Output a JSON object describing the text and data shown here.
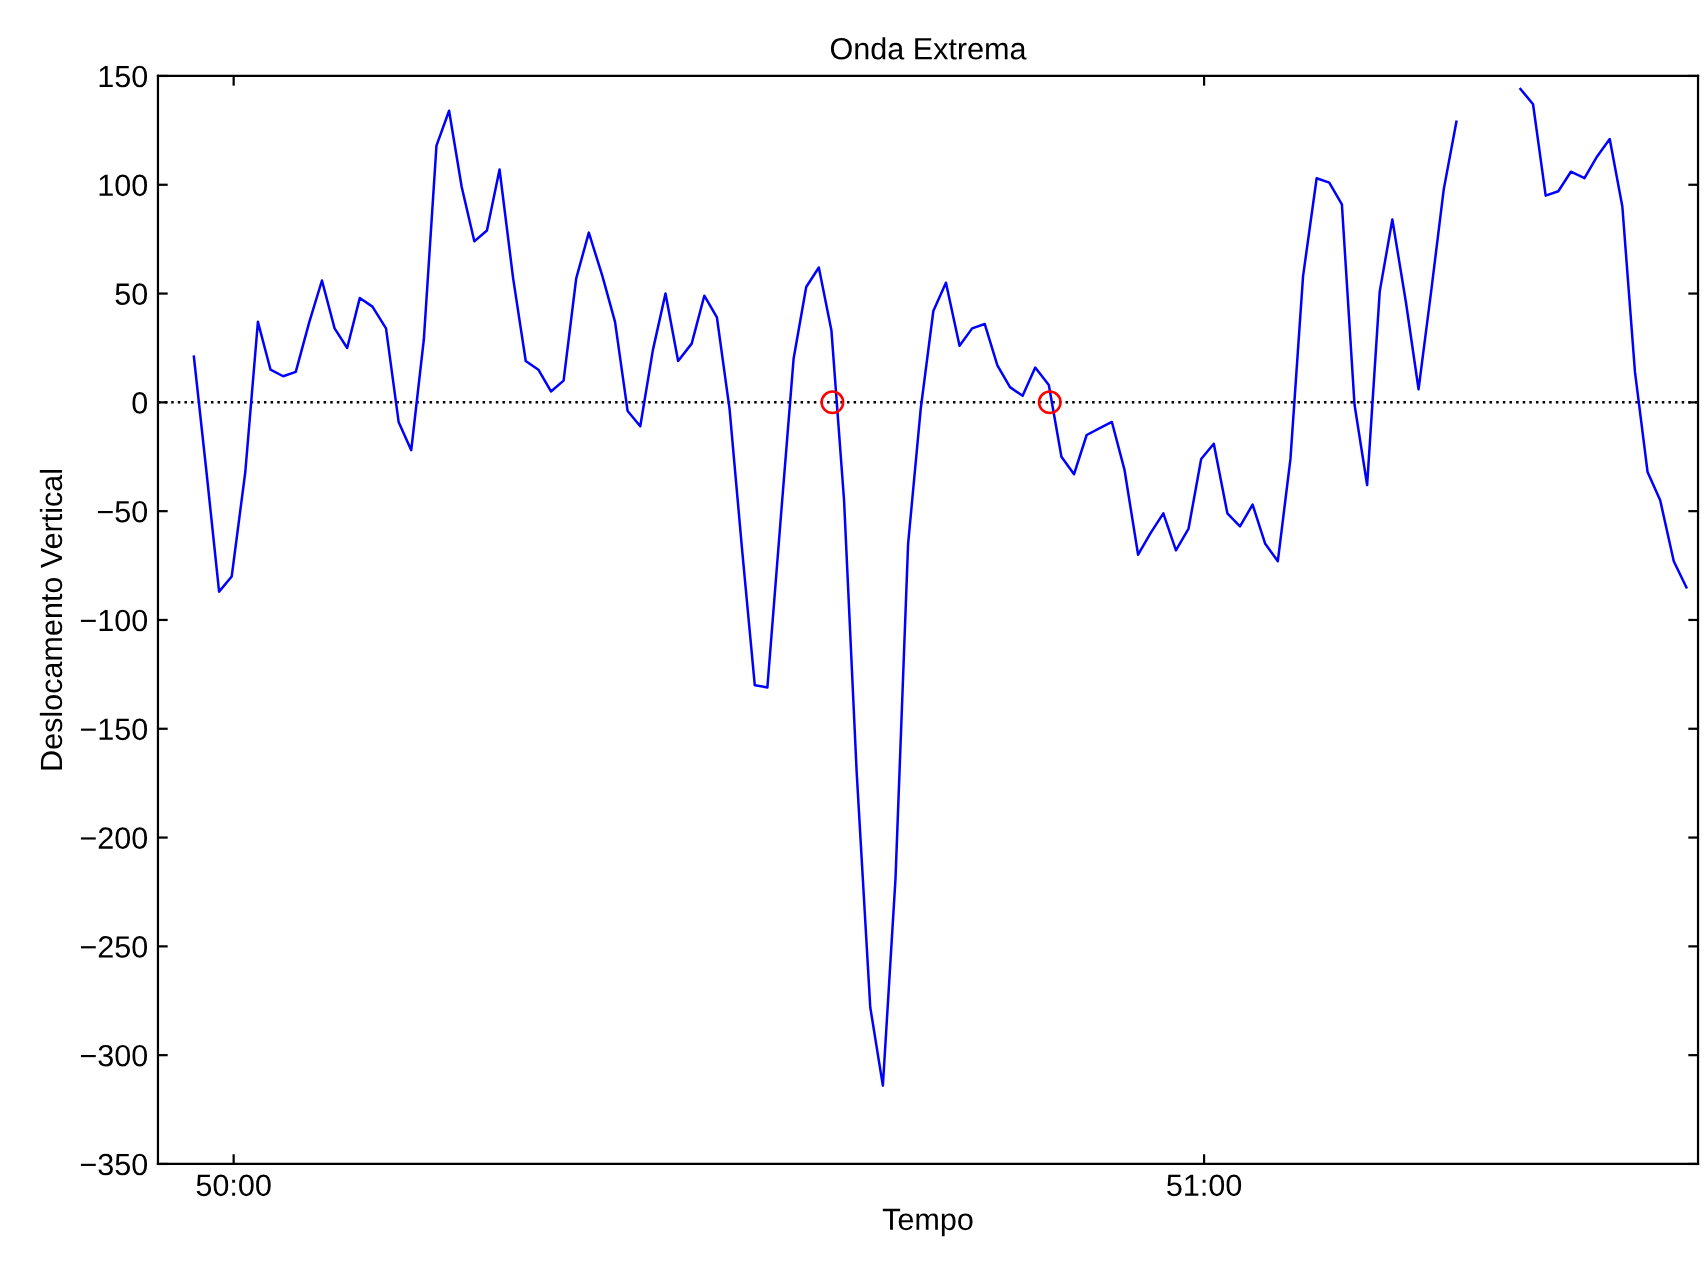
{
  "chart_data": {
    "type": "line",
    "title": "Onda Extrema",
    "xlabel": "Tempo",
    "ylabel": "Deslocamento Vertical",
    "xlim": [
      49.922,
      51.509
    ],
    "xticks": [
      {
        "value": 50,
        "label": "50:00"
      },
      {
        "value": 51,
        "label": "51:00"
      }
    ],
    "ylim": [
      -350,
      150
    ],
    "yticks": [
      {
        "value": -350,
        "label": "−350"
      },
      {
        "value": -300,
        "label": "−300"
      },
      {
        "value": -250,
        "label": "−250"
      },
      {
        "value": -200,
        "label": "−200"
      },
      {
        "value": -150,
        "label": "−150"
      },
      {
        "value": -100,
        "label": "−100"
      },
      {
        "value": -50,
        "label": "−50"
      },
      0,
      50,
      100,
      150
    ],
    "grid": false,
    "legend": false,
    "ref_lines": [
      {
        "axis": "y",
        "value": 0,
        "color": "#000000",
        "line_style": "dotted"
      }
    ],
    "series": [
      {
        "color": "#0000ff",
        "marker": "none",
        "line_style": "solid",
        "x": [
          49.959,
          49.972,
          49.985,
          49.998,
          50.012,
          50.025,
          50.038,
          50.051,
          50.064,
          50.078,
          50.091,
          50.104,
          50.117,
          50.13,
          50.143,
          50.157,
          50.17,
          50.183,
          50.196,
          50.209,
          50.222,
          50.235,
          50.248,
          50.261,
          50.274,
          50.288,
          50.301,
          50.314,
          50.327,
          50.34,
          50.353,
          50.366,
          50.38,
          50.393,
          50.406,
          50.419,
          50.432,
          50.445,
          50.458,
          50.472,
          50.485,
          50.498,
          50.511,
          50.524,
          50.537,
          50.55,
          50.564,
          50.577,
          50.59,
          50.603,
          50.616,
          50.629,
          50.642,
          50.656,
          50.669,
          50.682,
          50.695,
          50.708,
          50.721,
          50.734,
          50.748,
          50.761,
          50.774,
          50.787,
          50.8,
          50.813,
          50.826,
          50.84,
          50.853,
          50.866,
          50.879,
          50.892,
          50.905,
          50.918,
          50.932,
          50.945,
          50.958,
          50.971,
          50.984,
          50.997,
          51.01,
          51.024,
          51.037,
          51.05,
          51.063,
          51.076,
          51.089,
          51.102,
          51.116,
          51.129,
          51.142,
          51.155,
          51.168,
          51.181,
          51.194,
          51.208,
          51.221,
          51.234,
          51.247,
          51.26,
          51.273,
          51.286,
          51.3,
          51.313,
          51.326,
          51.339,
          51.352,
          51.365,
          51.378,
          51.392,
          51.405,
          51.418,
          51.431,
          51.444,
          51.457,
          51.47,
          51.484,
          51.497
        ],
        "values": [
          21,
          -32,
          -87,
          -80,
          -32,
          37,
          15,
          12,
          14,
          37,
          56,
          34,
          25,
          48,
          44,
          34,
          -9,
          -22,
          29,
          118,
          134,
          99,
          74,
          79,
          107,
          57,
          19,
          15,
          5,
          10,
          57,
          78,
          58,
          37,
          -4,
          -11,
          24,
          50,
          19,
          27,
          49,
          39,
          -3,
          -68,
          -130,
          -131,
          -52,
          20,
          53,
          62,
          33,
          -45,
          -170,
          -278,
          -314,
          -219,
          -65,
          -3,
          42,
          55,
          26,
          34,
          36,
          17,
          7,
          3,
          16,
          8,
          -25,
          -33,
          -15,
          -12,
          -9,
          -31,
          -70,
          -60,
          -51,
          -68,
          -58,
          -26,
          -19,
          -51,
          -57,
          -47,
          -65,
          -73,
          -26,
          58,
          103,
          101,
          91,
          -1,
          -38,
          51,
          84,
          46,
          6,
          51,
          98,
          129,
          null,
          null,
          null,
          null,
          144,
          137,
          95,
          97,
          106,
          103,
          113,
          121,
          90,
          14,
          -32,
          -45,
          -73,
          -85
        ]
      },
      {
        "type": "scatter",
        "color": "#ff0000",
        "marker": "circle",
        "x": [
          50.617,
          50.841
        ],
        "values": [
          0,
          0
        ]
      }
    ]
  }
}
